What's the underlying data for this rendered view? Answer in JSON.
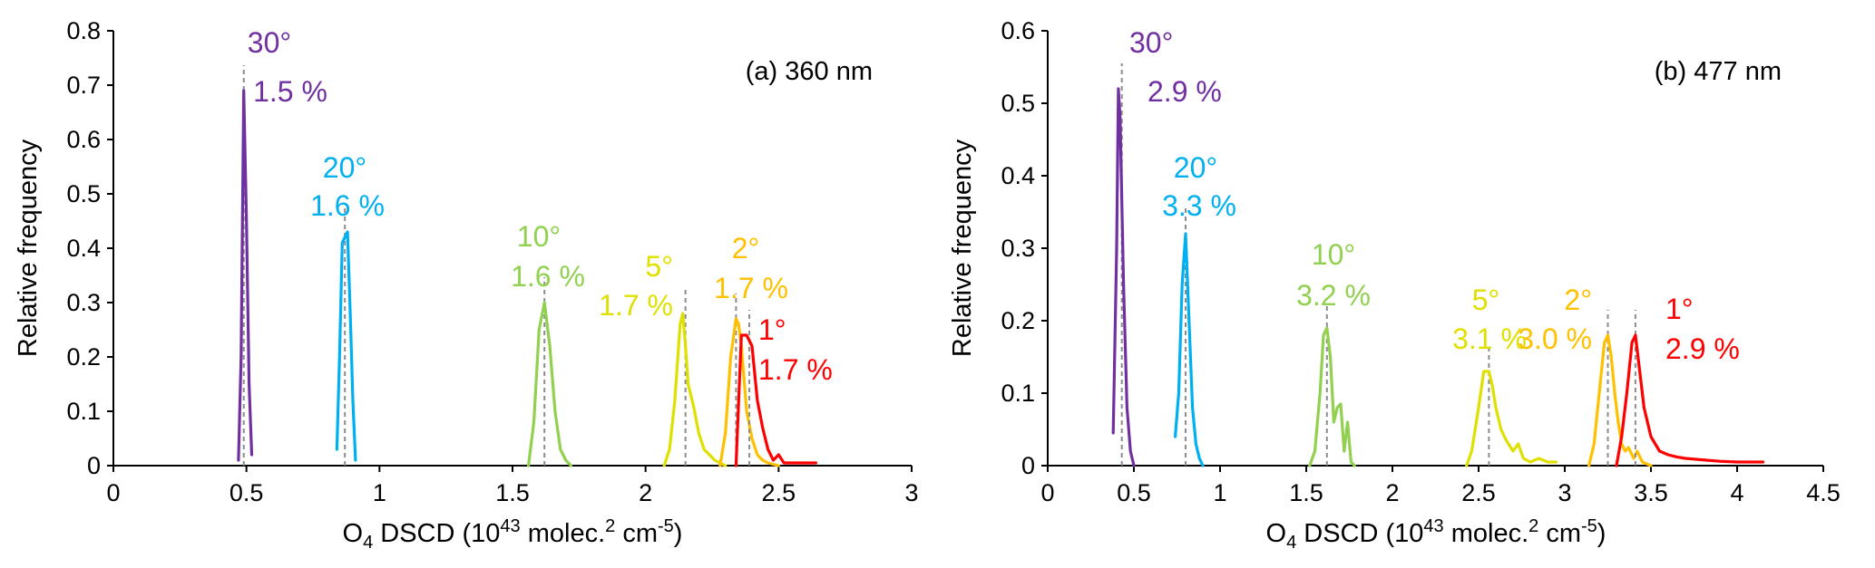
{
  "chart_data": [
    {
      "type": "line",
      "title": "(a) 360 nm",
      "xlabel": "O4 DSCD (10^43 molec.^2 cm^-5)",
      "ylabel": "Relative frequency",
      "xlim": [
        0,
        3
      ],
      "ylim": [
        0,
        0.8
      ],
      "xticks": [
        0,
        0.5,
        1,
        1.5,
        2,
        2.5,
        3
      ],
      "xtick_labels": [
        "0",
        "0.5",
        "1",
        "1.5",
        "2",
        "2.5",
        "3"
      ],
      "yticks": [
        0,
        0.1,
        0.2,
        0.3,
        0.4,
        0.5,
        0.6,
        0.7,
        0.8
      ],
      "ytick_labels": [
        "0",
        "0.1",
        "0.2",
        "0.3",
        "0.4",
        "0.5",
        "0.6",
        "0.7",
        "0.8"
      ],
      "grid": false,
      "legend": "none",
      "series": [
        {
          "color": "#7030a0",
          "ref_x": 0.49,
          "label_line1": "30°",
          "label_line2": "1.5 %",
          "points": [
            [
              0.47,
              0.01
            ],
            [
              0.48,
              0.2
            ],
            [
              0.49,
              0.69
            ],
            [
              0.5,
              0.45
            ],
            [
              0.51,
              0.15
            ],
            [
              0.52,
              0.02
            ]
          ]
        },
        {
          "color": "#00b0f0",
          "ref_x": 0.87,
          "label_line1": "20°",
          "label_line2": "1.6 %",
          "points": [
            [
              0.84,
              0.03
            ],
            [
              0.85,
              0.2
            ],
            [
              0.86,
              0.41
            ],
            [
              0.87,
              0.42
            ],
            [
              0.88,
              0.43
            ],
            [
              0.89,
              0.28
            ],
            [
              0.9,
              0.12
            ],
            [
              0.91,
              0.01
            ]
          ]
        },
        {
          "color": "#92d050",
          "ref_x": 1.62,
          "label_line1": "10°",
          "label_line2": "1.6 %",
          "points": [
            [
              1.56,
              0.0
            ],
            [
              1.58,
              0.08
            ],
            [
              1.6,
              0.25
            ],
            [
              1.62,
              0.3
            ],
            [
              1.64,
              0.22
            ],
            [
              1.66,
              0.1
            ],
            [
              1.68,
              0.03
            ],
            [
              1.7,
              0.01
            ],
            [
              1.72,
              0.0
            ]
          ]
        },
        {
          "color": "#e0e000",
          "ref_x": 2.15,
          "label_line1": "5°",
          "label_line2": "1.7 %",
          "points": [
            [
              2.07,
              0.0
            ],
            [
              2.09,
              0.03
            ],
            [
              2.11,
              0.12
            ],
            [
              2.13,
              0.26
            ],
            [
              2.14,
              0.28
            ],
            [
              2.15,
              0.22
            ],
            [
              2.16,
              0.15
            ],
            [
              2.18,
              0.11
            ],
            [
              2.2,
              0.06
            ],
            [
              2.22,
              0.03
            ],
            [
              2.24,
              0.02
            ],
            [
              2.26,
              0.01
            ],
            [
              2.28,
              0.005
            ],
            [
              2.3,
              0.0
            ]
          ]
        },
        {
          "color": "#ffc000",
          "ref_x": 2.34,
          "label_line1": "2°",
          "label_line2": "1.7 %",
          "points": [
            [
              2.28,
              0.0
            ],
            [
              2.3,
              0.06
            ],
            [
              2.32,
              0.2
            ],
            [
              2.34,
              0.27
            ],
            [
              2.35,
              0.26
            ],
            [
              2.36,
              0.22
            ],
            [
              2.38,
              0.1
            ],
            [
              2.4,
              0.05
            ],
            [
              2.42,
              0.02
            ],
            [
              2.44,
              0.01
            ],
            [
              2.46,
              0.005
            ],
            [
              2.5,
              0.0
            ]
          ]
        },
        {
          "color": "#ff0000",
          "ref_x": 2.39,
          "label_line1": "1°",
          "label_line2": "1.7 %",
          "points": [
            [
              2.34,
              0.0
            ],
            [
              2.35,
              0.12
            ],
            [
              2.36,
              0.24
            ],
            [
              2.38,
              0.24
            ],
            [
              2.4,
              0.22
            ],
            [
              2.42,
              0.12
            ],
            [
              2.44,
              0.07
            ],
            [
              2.46,
              0.03
            ],
            [
              2.48,
              0.01
            ],
            [
              2.5,
              0.02
            ],
            [
              2.52,
              0.005
            ],
            [
              2.55,
              0.005
            ],
            [
              2.6,
              0.005
            ],
            [
              2.64,
              0.005
            ]
          ]
        }
      ]
    },
    {
      "type": "line",
      "title": "(b) 477 nm",
      "xlabel": "O4 DSCD (10^43 molec.^2 cm^-5)",
      "ylabel": "Relative frequency",
      "xlim": [
        0,
        4.5
      ],
      "ylim": [
        0,
        0.6
      ],
      "xticks": [
        0,
        0.5,
        1,
        1.5,
        2,
        2.5,
        3,
        3.5,
        4,
        4.5
      ],
      "xtick_labels": [
        "0",
        "0.5",
        "1",
        "1.5",
        "2",
        "2.5",
        "3",
        "3.5",
        "4",
        "4.5"
      ],
      "yticks": [
        0,
        0.1,
        0.2,
        0.3,
        0.4,
        0.5,
        0.6
      ],
      "ytick_labels": [
        "0",
        "0.1",
        "0.2",
        "0.3",
        "0.4",
        "0.5",
        "0.6"
      ],
      "grid": false,
      "legend": "none",
      "series": [
        {
          "color": "#7030a0",
          "ref_x": 0.43,
          "label_line1": "30°",
          "label_line2": "2.9 %",
          "points": [
            [
              0.38,
              0.045
            ],
            [
              0.4,
              0.3
            ],
            [
              0.41,
              0.52
            ],
            [
              0.42,
              0.48
            ],
            [
              0.44,
              0.25
            ],
            [
              0.46,
              0.08
            ],
            [
              0.48,
              0.02
            ],
            [
              0.5,
              0.0
            ]
          ]
        },
        {
          "color": "#00b0f0",
          "ref_x": 0.8,
          "label_line1": "20°",
          "label_line2": "3.3 %",
          "points": [
            [
              0.74,
              0.04
            ],
            [
              0.76,
              0.1
            ],
            [
              0.78,
              0.25
            ],
            [
              0.8,
              0.32
            ],
            [
              0.82,
              0.2
            ],
            [
              0.84,
              0.08
            ],
            [
              0.86,
              0.03
            ],
            [
              0.88,
              0.01
            ],
            [
              0.9,
              0.0
            ]
          ]
        },
        {
          "color": "#92d050",
          "ref_x": 1.62,
          "label_line1": "10°",
          "label_line2": "3.2 %",
          "points": [
            [
              1.52,
              0.0
            ],
            [
              1.55,
              0.02
            ],
            [
              1.58,
              0.1
            ],
            [
              1.6,
              0.18
            ],
            [
              1.62,
              0.19
            ],
            [
              1.64,
              0.15
            ],
            [
              1.66,
              0.06
            ],
            [
              1.68,
              0.08
            ],
            [
              1.7,
              0.085
            ],
            [
              1.72,
              0.02
            ],
            [
              1.74,
              0.06
            ],
            [
              1.76,
              0.005
            ],
            [
              1.78,
              0.0
            ]
          ]
        },
        {
          "color": "#e0e000",
          "ref_x": 2.56,
          "label_line1": "5°",
          "label_line2": "3.1 %",
          "points": [
            [
              2.43,
              0.0
            ],
            [
              2.46,
              0.02
            ],
            [
              2.5,
              0.08
            ],
            [
              2.53,
              0.13
            ],
            [
              2.56,
              0.13
            ],
            [
              2.58,
              0.11
            ],
            [
              2.6,
              0.08
            ],
            [
              2.63,
              0.05
            ],
            [
              2.66,
              0.035
            ],
            [
              2.7,
              0.02
            ],
            [
              2.73,
              0.03
            ],
            [
              2.76,
              0.01
            ],
            [
              2.8,
              0.005
            ],
            [
              2.85,
              0.01
            ],
            [
              2.9,
              0.005
            ],
            [
              2.95,
              0.005
            ]
          ]
        },
        {
          "color": "#ffc000",
          "ref_x": 3.25,
          "label_line1": "2°",
          "label_line2": "3.0 %",
          "points": [
            [
              3.14,
              0.0
            ],
            [
              3.17,
              0.03
            ],
            [
              3.2,
              0.1
            ],
            [
              3.23,
              0.17
            ],
            [
              3.25,
              0.18
            ],
            [
              3.27,
              0.15
            ],
            [
              3.29,
              0.1
            ],
            [
              3.31,
              0.06
            ],
            [
              3.33,
              0.03
            ],
            [
              3.35,
              0.02
            ],
            [
              3.37,
              0.025
            ],
            [
              3.4,
              0.01
            ],
            [
              3.42,
              0.02
            ],
            [
              3.45,
              0.005
            ],
            [
              3.5,
              0.0
            ]
          ]
        },
        {
          "color": "#ff0000",
          "ref_x": 3.41,
          "label_line1": "1°",
          "label_line2": "2.9 %",
          "points": [
            [
              3.3,
              0.0
            ],
            [
              3.33,
              0.04
            ],
            [
              3.36,
              0.1
            ],
            [
              3.39,
              0.17
            ],
            [
              3.41,
              0.18
            ],
            [
              3.43,
              0.14
            ],
            [
              3.46,
              0.08
            ],
            [
              3.5,
              0.04
            ],
            [
              3.55,
              0.02
            ],
            [
              3.6,
              0.015
            ],
            [
              3.65,
              0.012
            ],
            [
              3.7,
              0.01
            ],
            [
              3.8,
              0.008
            ],
            [
              3.9,
              0.006
            ],
            [
              4.0,
              0.005
            ],
            [
              4.15,
              0.005
            ]
          ]
        }
      ]
    }
  ]
}
